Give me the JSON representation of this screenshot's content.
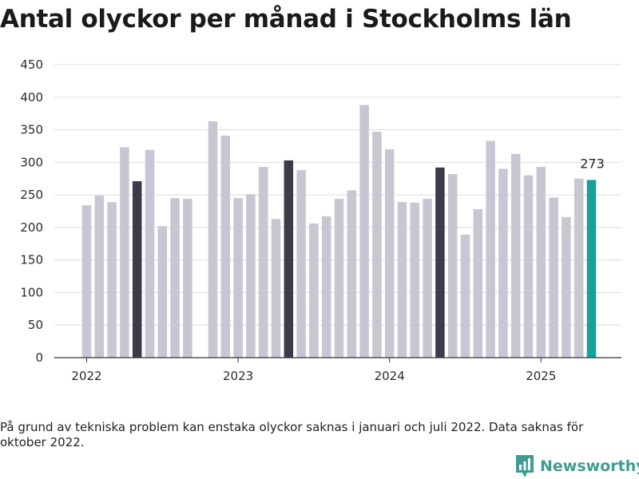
{
  "title": "Antal olyckor per månad i Stockholms län",
  "footnote": "På grund av tekniska problem kan enstaka olyckor saknas i januari och juli 2022. Data saknas för oktober 2022.",
  "brand": {
    "name": "Newsworthy",
    "icon": "newsworthy-logo-icon",
    "color": "#3f9c93"
  },
  "colors": {
    "default": "#c8c6d2",
    "same_month": "#3d3b4a",
    "latest": "#13a39b",
    "grid": "#dcdcdc",
    "axis": "#333333"
  },
  "chart_data": {
    "type": "bar",
    "ylim": [
      0,
      450
    ],
    "yticks": [
      0,
      50,
      100,
      150,
      200,
      250,
      300,
      350,
      400,
      450
    ],
    "xticks": [
      "2022",
      "2023",
      "2024",
      "2025"
    ],
    "highlight_label": "273",
    "grid": true,
    "bars": [
      {
        "year": 2022,
        "month": 1,
        "value": 234,
        "kind": "default"
      },
      {
        "year": 2022,
        "month": 2,
        "value": 249,
        "kind": "default"
      },
      {
        "year": 2022,
        "month": 3,
        "value": 239,
        "kind": "default"
      },
      {
        "year": 2022,
        "month": 4,
        "value": 323,
        "kind": "default"
      },
      {
        "year": 2022,
        "month": 5,
        "value": 271,
        "kind": "same_month"
      },
      {
        "year": 2022,
        "month": 6,
        "value": 319,
        "kind": "default"
      },
      {
        "year": 2022,
        "month": 7,
        "value": 202,
        "kind": "default"
      },
      {
        "year": 2022,
        "month": 8,
        "value": 245,
        "kind": "default"
      },
      {
        "year": 2022,
        "month": 9,
        "value": 244,
        "kind": "default"
      },
      {
        "year": 2022,
        "month": 11,
        "value": 363,
        "kind": "default"
      },
      {
        "year": 2022,
        "month": 12,
        "value": 341,
        "kind": "default"
      },
      {
        "year": 2023,
        "month": 1,
        "value": 245,
        "kind": "default"
      },
      {
        "year": 2023,
        "month": 2,
        "value": 251,
        "kind": "default"
      },
      {
        "year": 2023,
        "month": 3,
        "value": 293,
        "kind": "default"
      },
      {
        "year": 2023,
        "month": 4,
        "value": 213,
        "kind": "default"
      },
      {
        "year": 2023,
        "month": 5,
        "value": 303,
        "kind": "same_month"
      },
      {
        "year": 2023,
        "month": 6,
        "value": 288,
        "kind": "default"
      },
      {
        "year": 2023,
        "month": 7,
        "value": 206,
        "kind": "default"
      },
      {
        "year": 2023,
        "month": 8,
        "value": 217,
        "kind": "default"
      },
      {
        "year": 2023,
        "month": 9,
        "value": 244,
        "kind": "default"
      },
      {
        "year": 2023,
        "month": 10,
        "value": 257,
        "kind": "default"
      },
      {
        "year": 2023,
        "month": 11,
        "value": 388,
        "kind": "default"
      },
      {
        "year": 2023,
        "month": 12,
        "value": 347,
        "kind": "default"
      },
      {
        "year": 2024,
        "month": 1,
        "value": 320,
        "kind": "default"
      },
      {
        "year": 2024,
        "month": 2,
        "value": 239,
        "kind": "default"
      },
      {
        "year": 2024,
        "month": 3,
        "value": 238,
        "kind": "default"
      },
      {
        "year": 2024,
        "month": 4,
        "value": 244,
        "kind": "default"
      },
      {
        "year": 2024,
        "month": 5,
        "value": 292,
        "kind": "same_month"
      },
      {
        "year": 2024,
        "month": 6,
        "value": 282,
        "kind": "default"
      },
      {
        "year": 2024,
        "month": 7,
        "value": 189,
        "kind": "default"
      },
      {
        "year": 2024,
        "month": 8,
        "value": 228,
        "kind": "default"
      },
      {
        "year": 2024,
        "month": 9,
        "value": 333,
        "kind": "default"
      },
      {
        "year": 2024,
        "month": 10,
        "value": 290,
        "kind": "default"
      },
      {
        "year": 2024,
        "month": 11,
        "value": 313,
        "kind": "default"
      },
      {
        "year": 2024,
        "month": 12,
        "value": 280,
        "kind": "default"
      },
      {
        "year": 2025,
        "month": 1,
        "value": 293,
        "kind": "default"
      },
      {
        "year": 2025,
        "month": 2,
        "value": 246,
        "kind": "default"
      },
      {
        "year": 2025,
        "month": 3,
        "value": 216,
        "kind": "default"
      },
      {
        "year": 2025,
        "month": 4,
        "value": 275,
        "kind": "default"
      },
      {
        "year": 2025,
        "month": 5,
        "value": 273,
        "kind": "latest"
      }
    ]
  }
}
